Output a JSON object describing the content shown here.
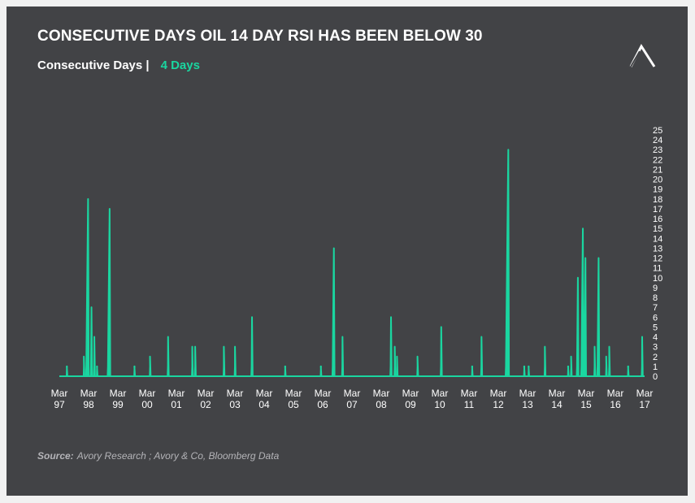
{
  "title": "CONSECUTIVE DAYS OIL 14 DAY RSI HAS BEEN BELOW 30",
  "legend": {
    "label": "Consecutive Days |",
    "value": "4 Days"
  },
  "source": {
    "label": "Source:",
    "text": "Avory Research ; Avory & Co, Bloomberg Data"
  },
  "logo_icon": "avory-logo-icon",
  "colors": {
    "background": "#424346",
    "series": "#1ad6a0",
    "text": "#ffffff",
    "axis": "#ffffff"
  },
  "chart_data": {
    "type": "area",
    "title": "CONSECUTIVE DAYS OIL 14 DAY RSI HAS BEEN BELOW 30",
    "xlabel": "",
    "ylabel": "",
    "xlim": [
      1997.17,
      2017.17
    ],
    "ylim": [
      0,
      25
    ],
    "y_ticks": [
      0,
      1,
      2,
      3,
      4,
      5,
      6,
      7,
      8,
      9,
      10,
      11,
      12,
      13,
      14,
      15,
      16,
      17,
      18,
      19,
      20,
      21,
      22,
      23,
      24,
      25
    ],
    "y_axis_side": "right",
    "grid": false,
    "x_ticks": [
      {
        "top": "Mar",
        "bottom": "97"
      },
      {
        "top": "Mar",
        "bottom": "98"
      },
      {
        "top": "Mar",
        "bottom": "99"
      },
      {
        "top": "Mar",
        "bottom": "00"
      },
      {
        "top": "Mar",
        "bottom": "01"
      },
      {
        "top": "Mar",
        "bottom": "02"
      },
      {
        "top": "Mar",
        "bottom": "03"
      },
      {
        "top": "Mar",
        "bottom": "04"
      },
      {
        "top": "Mar",
        "bottom": "05"
      },
      {
        "top": "Mar",
        "bottom": "06"
      },
      {
        "top": "Mar",
        "bottom": "07"
      },
      {
        "top": "Mar",
        "bottom": "08"
      },
      {
        "top": "Mar",
        "bottom": "09"
      },
      {
        "top": "Mar",
        "bottom": "10"
      },
      {
        "top": "Mar",
        "bottom": "11"
      },
      {
        "top": "Mar",
        "bottom": "12"
      },
      {
        "top": "Mar",
        "bottom": "13"
      },
      {
        "top": "Mar",
        "bottom": "14"
      },
      {
        "top": "Mar",
        "bottom": "15"
      },
      {
        "top": "Mar",
        "bottom": "16"
      },
      {
        "top": "Mar",
        "bottom": "17"
      }
    ],
    "series": [
      {
        "name": "Consecutive Days",
        "episodes": [
          {
            "start": 1997.42,
            "peak": 1
          },
          {
            "start": 1998.0,
            "peak": 2
          },
          {
            "start": 1998.08,
            "peak": 18
          },
          {
            "start": 1998.24,
            "peak": 7
          },
          {
            "start": 1998.35,
            "peak": 4
          },
          {
            "start": 1998.45,
            "peak": 1
          },
          {
            "start": 1998.82,
            "peak": 17
          },
          {
            "start": 1999.73,
            "peak": 1
          },
          {
            "start": 2000.26,
            "peak": 2
          },
          {
            "start": 2000.87,
            "peak": 4
          },
          {
            "start": 2001.7,
            "peak": 3
          },
          {
            "start": 2001.8,
            "peak": 3
          },
          {
            "start": 2002.78,
            "peak": 3
          },
          {
            "start": 2003.16,
            "peak": 3
          },
          {
            "start": 2003.73,
            "peak": 6
          },
          {
            "start": 2004.88,
            "peak": 1
          },
          {
            "start": 2006.1,
            "peak": 1
          },
          {
            "start": 2006.5,
            "peak": 13
          },
          {
            "start": 2006.83,
            "peak": 4
          },
          {
            "start": 2008.48,
            "peak": 6
          },
          {
            "start": 2008.62,
            "peak": 3
          },
          {
            "start": 2008.7,
            "peak": 2
          },
          {
            "start": 2009.4,
            "peak": 2
          },
          {
            "start": 2010.2,
            "peak": 5
          },
          {
            "start": 2011.27,
            "peak": 1
          },
          {
            "start": 2011.58,
            "peak": 4
          },
          {
            "start": 2012.42,
            "peak": 23
          },
          {
            "start": 2013.05,
            "peak": 1
          },
          {
            "start": 2013.2,
            "peak": 1
          },
          {
            "start": 2013.75,
            "peak": 3
          },
          {
            "start": 2014.55,
            "peak": 1
          },
          {
            "start": 2014.65,
            "peak": 2
          },
          {
            "start": 2014.85,
            "peak": 10
          },
          {
            "start": 2015.0,
            "peak": 15
          },
          {
            "start": 2015.1,
            "peak": 12
          },
          {
            "start": 2015.45,
            "peak": 3
          },
          {
            "start": 2015.55,
            "peak": 12
          },
          {
            "start": 2015.85,
            "peak": 2
          },
          {
            "start": 2015.95,
            "peak": 3
          },
          {
            "start": 2016.6,
            "peak": 1
          },
          {
            "start": 2017.07,
            "peak": 4
          }
        ]
      }
    ]
  }
}
